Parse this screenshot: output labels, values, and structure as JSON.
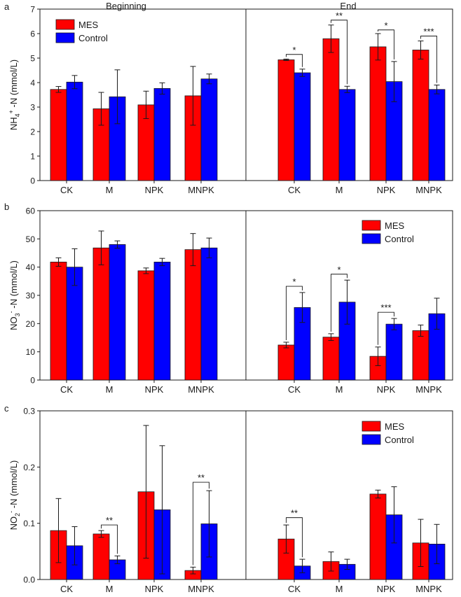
{
  "colors": {
    "mes": "#ff0000",
    "control": "#0000ff",
    "axis": "#1a1a1a"
  },
  "chart_data": [
    {
      "type": "bar",
      "panel_letter": "a",
      "section_titles": [
        "Beginning",
        "End"
      ],
      "ylabel": {
        "main": "NH",
        "sub": "4",
        "sup": "+",
        "tail": " -N (mmol/L)"
      },
      "ylim": [
        0,
        7
      ],
      "yticks": [
        0,
        1,
        2,
        3,
        4,
        5,
        6,
        7
      ],
      "ytick_labels": [
        "0",
        "1",
        "2",
        "3",
        "4",
        "5",
        "6",
        "7"
      ],
      "categories": [
        "CK",
        "M",
        "NPK",
        "MNPK"
      ],
      "legend": {
        "placement": "top-left",
        "entries": [
          "MES",
          "Control"
        ]
      },
      "beginning": {
        "series": [
          {
            "name": "MES",
            "values": [
              3.72,
              2.93,
              3.09,
              3.46
            ],
            "errors": [
              0.12,
              0.67,
              0.56,
              1.2
            ]
          },
          {
            "name": "Control",
            "values": [
              4.02,
              3.42,
              3.76,
              4.15
            ],
            "errors": [
              0.27,
              1.1,
              0.23,
              0.2
            ]
          }
        ],
        "significance": []
      },
      "end": {
        "series": [
          {
            "name": "MES",
            "values": [
              4.93,
              5.79,
              5.46,
              5.33
            ],
            "errors": [
              0.03,
              0.56,
              0.54,
              0.37
            ]
          },
          {
            "name": "Control",
            "values": [
              4.4,
              3.72,
              4.04,
              3.72
            ],
            "errors": [
              0.15,
              0.13,
              0.82,
              0.18
            ]
          }
        ],
        "significance": [
          {
            "category": 0,
            "label": "*",
            "y": 5.15
          },
          {
            "category": 1,
            "label": "**",
            "y": 6.55
          },
          {
            "category": 2,
            "label": "*",
            "y": 6.15
          },
          {
            "category": 3,
            "label": "***",
            "y": 5.9
          }
        ]
      }
    },
    {
      "type": "bar",
      "panel_letter": "b",
      "ylabel": {
        "main": "NO",
        "sub": "3",
        "sup": "-",
        "tail": " -N  (mmol/L)"
      },
      "ylim": [
        0,
        60
      ],
      "yticks": [
        0,
        10,
        20,
        30,
        40,
        50,
        60
      ],
      "ytick_labels": [
        "0",
        "10",
        "20",
        "30",
        "40",
        "50",
        "60"
      ],
      "categories": [
        "CK",
        "M",
        "NPK",
        "MNPK"
      ],
      "legend": {
        "placement": "top-right",
        "entries": [
          "MES",
          "Control"
        ]
      },
      "beginning": {
        "series": [
          {
            "name": "MES",
            "values": [
              41.8,
              46.8,
              38.7,
              46.2
            ],
            "errors": [
              1.5,
              6.0,
              1.0,
              5.7
            ]
          },
          {
            "name": "Control",
            "values": [
              40.0,
              48.0,
              41.8,
              46.8
            ],
            "errors": [
              6.5,
              1.3,
              1.3,
              3.5
            ]
          }
        ],
        "significance": []
      },
      "end": {
        "series": [
          {
            "name": "MES",
            "values": [
              12.4,
              15.2,
              8.4,
              17.5
            ],
            "errors": [
              1.0,
              1.2,
              3.3,
              2.0
            ]
          },
          {
            "name": "Control",
            "values": [
              25.7,
              27.6,
              19.8,
              23.5
            ],
            "errors": [
              5.3,
              7.8,
              2.0,
              5.5
            ]
          }
        ],
        "significance": [
          {
            "category": 0,
            "label": "*",
            "y": 33.2
          },
          {
            "category": 1,
            "label": "*",
            "y": 37.5
          },
          {
            "category": 2,
            "label": "***",
            "y": 24.0
          }
        ]
      }
    },
    {
      "type": "bar",
      "panel_letter": "c",
      "ylabel": {
        "main": "NO",
        "sub": "2",
        "sup": "-",
        "tail": " -N (mmol/L)"
      },
      "ylim": [
        0,
        0.3
      ],
      "yticks": [
        0,
        0.1,
        0.2,
        0.3
      ],
      "ytick_labels": [
        "0.0",
        "0.1",
        "0.2",
        "0.3"
      ],
      "categories": [
        "CK",
        "M",
        "NPK",
        "MNPK"
      ],
      "legend": {
        "placement": "top-right",
        "entries": [
          "MES",
          "Control"
        ]
      },
      "beginning": {
        "series": [
          {
            "name": "MES",
            "values": [
              0.087,
              0.081,
              0.156,
              0.016
            ],
            "errors": [
              0.057,
              0.006,
              0.118,
              0.006
            ]
          },
          {
            "name": "Control",
            "values": [
              0.06,
              0.035,
              0.124,
              0.099
            ],
            "errors": [
              0.034,
              0.007,
              0.114,
              0.059
            ]
          }
        ],
        "significance": [
          {
            "category": 1,
            "label": "**",
            "y": 0.097
          },
          {
            "category": 3,
            "label": "**",
            "y": 0.173
          }
        ]
      },
      "end": {
        "series": [
          {
            "name": "MES",
            "values": [
              0.072,
              0.032,
              0.152,
              0.065
            ],
            "errors": [
              0.025,
              0.017,
              0.007,
              0.042
            ]
          },
          {
            "name": "Control",
            "values": [
              0.024,
              0.027,
              0.115,
              0.063
            ],
            "errors": [
              0.012,
              0.009,
              0.05,
              0.035
            ]
          }
        ],
        "significance": [
          {
            "category": 0,
            "label": "**",
            "y": 0.11
          }
        ]
      }
    }
  ]
}
